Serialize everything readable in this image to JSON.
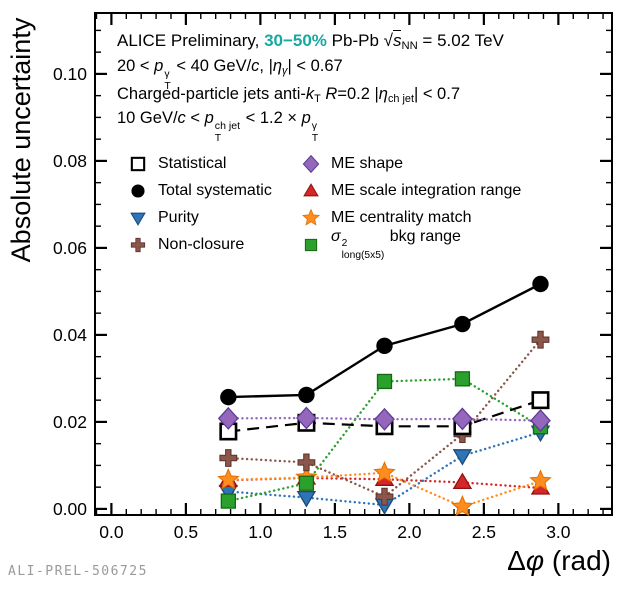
{
  "header": {
    "lines": [
      {
        "segs": [
          {
            "t": "ALICE Preliminary, ",
            "s": "n"
          },
          {
            "t": "30−50%",
            "s": "teal"
          },
          {
            "t": " Pb-Pb ",
            "s": "n"
          },
          {
            "t": "√",
            "s": "n"
          },
          {
            "t": "s",
            "s": "iov"
          },
          {
            "t": "NN",
            "s": "sub"
          },
          {
            "t": " = 5.02 TeV",
            "s": "n"
          }
        ]
      },
      {
        "segs": [
          {
            "t": "20 < ",
            "s": "n"
          },
          {
            "t": "p",
            "s": "i"
          },
          {
            "sup": "γ",
            "sub": "T"
          },
          {
            "t": " < 40 GeV/",
            "s": "n"
          },
          {
            "t": "c",
            "s": "i"
          },
          {
            "t": ", |",
            "s": "n"
          },
          {
            "t": "η",
            "s": "i"
          },
          {
            "t": "γ",
            "s": "subi"
          },
          {
            "t": "| < 0.67",
            "s": "n"
          }
        ]
      },
      {
        "segs": [
          {
            "t": "Charged-particle jets anti-",
            "s": "n"
          },
          {
            "t": "k",
            "s": "i"
          },
          {
            "t": "T",
            "s": "sub"
          },
          {
            "t": " ",
            "s": "n"
          },
          {
            "t": "R",
            "s": "i"
          },
          {
            "t": "=0.2 |",
            "s": "n"
          },
          {
            "t": "η",
            "s": "i"
          },
          {
            "t": "ch jet",
            "s": "sub"
          },
          {
            "t": "| < 0.7",
            "s": "n"
          }
        ]
      },
      {
        "segs": [
          {
            "t": "10 GeV/",
            "s": "n"
          },
          {
            "t": "c",
            "s": "i"
          },
          {
            "t": " < ",
            "s": "n"
          },
          {
            "t": "p",
            "s": "i"
          },
          {
            "sup": "ch jet",
            "sub": "T"
          },
          {
            "t": " < 1.2 × ",
            "s": "n"
          },
          {
            "t": "p",
            "s": "i"
          },
          {
            "sup": "γ",
            "sub": "T"
          }
        ]
      }
    ],
    "accent_color": "#18a8a2"
  },
  "legend": {
    "columns": [
      {
        "items": [
          {
            "series_index": 0,
            "label_segs": [
              {
                "t": "Statistical",
                "s": "n"
              }
            ]
          },
          {
            "series_index": 1,
            "label_segs": [
              {
                "t": "Total systematic",
                "s": "n"
              }
            ]
          },
          {
            "series_index": 2,
            "label_segs": [
              {
                "t": "Purity",
                "s": "n"
              }
            ]
          },
          {
            "series_index": 3,
            "label_segs": [
              {
                "t": "Non-closure",
                "s": "n"
              }
            ]
          }
        ]
      },
      {
        "items": [
          {
            "series_index": 4,
            "label_segs": [
              {
                "t": "ME shape",
                "s": "n"
              }
            ]
          },
          {
            "series_index": 5,
            "label_segs": [
              {
                "t": "ME scale integration range",
                "s": "n"
              }
            ]
          },
          {
            "series_index": 6,
            "label_segs": [
              {
                "t": "ME centrality match",
                "s": "n"
              }
            ]
          },
          {
            "series_index": 7,
            "label_segs": [
              {
                "t": "σ",
                "s": "i"
              },
              {
                "sup": "2",
                "sub": "long(5x5)"
              },
              {
                "t": " bkg range",
                "s": "n"
              }
            ]
          }
        ]
      }
    ]
  },
  "axes": {
    "x": {
      "label_segs": [
        {
          "t": "Δ",
          "s": "n"
        },
        {
          "t": "φ",
          "s": "i"
        },
        {
          "t": " (rad)",
          "s": "n"
        }
      ]
    },
    "y": {
      "label": "Absolute uncertainty"
    }
  },
  "watermark": "ALI-PREL-506725",
  "chart_data": {
    "type": "line",
    "title": "",
    "xlabel": "Δφ (rad)",
    "ylabel": "Absolute uncertainty",
    "xlim": [
      -0.11,
      3.36
    ],
    "ylim": [
      -0.0014,
      0.114
    ],
    "x_ticks": [
      0.0,
      0.5,
      1.0,
      1.5,
      2.0,
      2.5,
      3.0
    ],
    "y_ticks": [
      0.0,
      0.02,
      0.04,
      0.06,
      0.08,
      0.1
    ],
    "x_minor_step": 0.1,
    "y_minor_step": 0.005,
    "grid": false,
    "legend_position": "inside top-left, two columns",
    "x": [
      0.785,
      1.309,
      1.833,
      2.356,
      2.88
    ],
    "series": [
      {
        "name": "Statistical",
        "marker": "open-square",
        "color": "#000000",
        "edge": "#000000",
        "line": "dashed",
        "z": 6,
        "values": [
          0.0178,
          0.0198,
          0.019,
          0.019,
          0.025
        ]
      },
      {
        "name": "Total systematic",
        "marker": "circle",
        "color": "#000000",
        "edge": "#000000",
        "line": "solid",
        "z": 8,
        "values": [
          0.0257,
          0.0262,
          0.0375,
          0.0425,
          0.0517
        ]
      },
      {
        "name": "Purity",
        "marker": "triangle-down",
        "color": "#2e74b6",
        "edge": "#1a4a78",
        "line": "dotted",
        "z": 1,
        "values": [
          0.004,
          0.0026,
          0.0009,
          0.0122,
          0.0176
        ]
      },
      {
        "name": "Non-closure",
        "marker": "plus",
        "color": "#8c564b",
        "edge": "#59332b",
        "line": "dotted",
        "z": 5,
        "values": [
          0.0117,
          0.0107,
          0.0028,
          0.0172,
          0.0389
        ]
      },
      {
        "name": "ME shape",
        "marker": "diamond",
        "color": "#9467bd",
        "edge": "#5e3c96",
        "line": "dotted",
        "z": 7,
        "values": [
          0.0208,
          0.0209,
          0.0206,
          0.0207,
          0.0203
        ]
      },
      {
        "name": "ME scale integration range",
        "marker": "triangle-up",
        "color": "#d62728",
        "edge": "#8f1212",
        "line": "dotted",
        "z": 2,
        "values": [
          0.0066,
          0.0071,
          0.0068,
          0.0061,
          0.0048
        ]
      },
      {
        "name": "ME centrality match",
        "marker": "star",
        "color": "#ff8c1e",
        "edge": "#e06f00",
        "line": "dotted",
        "z": 3,
        "values": [
          0.0067,
          0.0072,
          0.0083,
          0.0005,
          0.0064
        ]
      },
      {
        "name": "σ² long(5x5) bkg range",
        "marker": "square",
        "color": "#2ca02c",
        "edge": "#156915",
        "line": "dotted",
        "z": 4,
        "values": [
          0.0018,
          0.0059,
          0.0293,
          0.0299,
          0.0189
        ]
      }
    ]
  }
}
